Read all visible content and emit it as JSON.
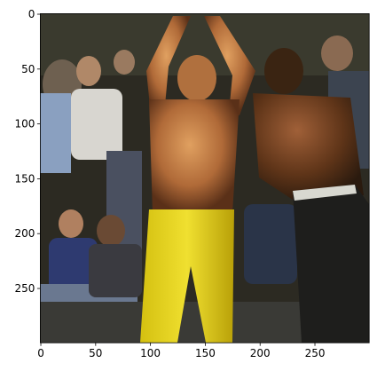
{
  "chart_data": {
    "type": "image",
    "xlim": [
      -0.5,
      299.5
    ],
    "ylim": [
      299.5,
      -0.5
    ],
    "xticks": [
      0,
      50,
      100,
      150,
      200,
      250
    ],
    "yticks": [
      0,
      50,
      100,
      150,
      200,
      250
    ]
  }
}
